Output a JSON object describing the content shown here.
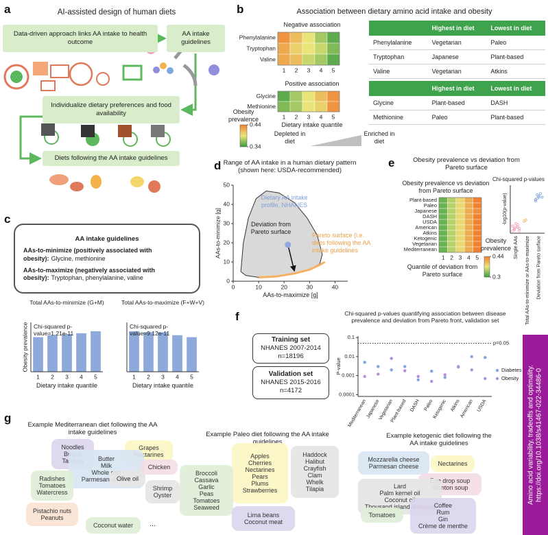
{
  "side_banner": "Amino acid variability, tradeoffs and optimality. https://doi.org/10.1038/s41467-022-34486-0",
  "panels": {
    "a": {
      "label": "a",
      "title": "AI-assisted design of human diets",
      "boxes": [
        "Data-driven approach links AA intake to health outcome",
        "AA intake guidelines",
        "Individualize dietary preferences and food availability",
        "Diets following the AA intake guidelines"
      ]
    },
    "b": {
      "label": "b",
      "title": "Association between dietary amino acid intake and obesity",
      "depleted": "Depleted in diet",
      "enriched": "Enriched in diet",
      "tables": [
        {
          "header": [
            "Highest in diet",
            "Lowest in diet"
          ],
          "rows": [
            [
              "Phenylalanine",
              "Vegetarian",
              "Paleo"
            ],
            [
              "Tryptophan",
              "Japanese",
              "Plant-based"
            ],
            [
              "Valine",
              "Vegetarian",
              "Atkins"
            ]
          ]
        },
        {
          "header": [
            "Highest in diet",
            "Lowest in diet"
          ],
          "rows": [
            [
              "Glycine",
              "Plant-based",
              "DASH"
            ],
            [
              "Methionine",
              "Paleo",
              "Plant-based"
            ]
          ]
        }
      ]
    },
    "c": {
      "label": "c",
      "guidelines_title": "AA intake guidelines",
      "minimize_label": "AAs-to-minimize (positively associated with obesity):",
      "minimize_items": "Glycine, methionine",
      "maximize_label": "AAs-to-maximize (negatively associated with obesity):",
      "maximize_items": "Tryptophan, phenylalanine, valine"
    },
    "d": {
      "label": "d"
    },
    "e": {
      "label": "e",
      "title": "Obesity prevalence vs deviation from Pareto surface"
    },
    "f": {
      "label": "f",
      "training": {
        "title": "Training set",
        "source": "NHANES 2007-2014",
        "n": "n=18196"
      },
      "validation": {
        "title": "Validation set",
        "source": "NHANES 2015-2016",
        "n": "n=4172"
      }
    },
    "g": {
      "label": "g",
      "diets": [
        {
          "title": "Example Mediterranean diet following the AA intake guidelines",
          "groups": [
            [
              "Noodles",
              "Bulgur",
              "Tapioca"
            ],
            [
              "Grapes",
              "Nectarines"
            ],
            [
              "Butter",
              "Milk",
              "Whole egg",
              "Parmesan cheese"
            ],
            [
              "Radishes",
              "Tomatoes",
              "Watercress"
            ],
            [
              "Chicken"
            ],
            [
              "Olive oil"
            ],
            [
              "Shrimp",
              "Oyster"
            ],
            [
              "Pistachio nuts",
              "Peanuts"
            ],
            [
              "Coconut water"
            ]
          ],
          "more": "..."
        },
        {
          "title": "Example Paleo diet following the AA intake guidelines",
          "groups": [
            [
              "Apples",
              "Cherries",
              "Nectarines",
              "Pears",
              "Plums",
              "Strawberries"
            ],
            [
              "Broccoli",
              "Cassava",
              "Garlic",
              "Peas",
              "Tomatoes",
              "Seaweed"
            ],
            [
              "Haddock",
              "Halibut",
              "Crayfish",
              "Clam",
              "Whelk",
              "Tilapia"
            ],
            [
              "Lima beans",
              "Coconut meat"
            ]
          ]
        },
        {
          "title": "Example ketogenic diet following the AA intake guidelines",
          "groups": [
            [
              "Mozzarella cheese",
              "Parmesan cheese"
            ],
            [
              "Nectarines"
            ],
            [
              "Egg drop soup",
              "Wonton soup"
            ],
            [
              "Lard",
              "Palm kernel oil",
              "Coconut oil",
              "Thousand island dressing"
            ],
            [
              "Tomatoes"
            ],
            [
              "Coffee",
              "Rum",
              "Gin",
              "Crème de menthe"
            ]
          ]
        }
      ]
    }
  },
  "chart_data": [
    {
      "type": "heatmap",
      "title": "Negative association",
      "rows": [
        "Phenylalanine",
        "Tryptophan",
        "Valine"
      ],
      "columns": [
        1,
        2,
        3,
        4,
        5
      ],
      "values": [
        [
          0.43,
          0.41,
          0.39,
          0.37,
          0.35
        ],
        [
          0.42,
          0.4,
          0.39,
          0.38,
          0.36
        ],
        [
          0.42,
          0.41,
          0.38,
          0.37,
          0.35
        ]
      ]
    },
    {
      "type": "heatmap",
      "title": "Positive association",
      "rows": [
        "Glycine",
        "Methionine"
      ],
      "columns": [
        1,
        2,
        3,
        4,
        5
      ],
      "values": [
        [
          0.35,
          0.37,
          0.39,
          0.41,
          0.43
        ],
        [
          0.36,
          0.37,
          0.39,
          0.4,
          0.43
        ]
      ],
      "xlabel": "Dietary intake quantile",
      "colorbar": {
        "label": "Obesity prevalence",
        "lim": [
          0.34,
          0.44
        ],
        "ticks": [
          0.44,
          0.34
        ]
      }
    },
    {
      "type": "bar",
      "title": "Total AAs-to-minimize (G+M)",
      "annotation": "Chi-squared p-value=1.21e-11",
      "categories": [
        1,
        2,
        3,
        4,
        5
      ],
      "values": [
        0.35,
        0.37,
        0.38,
        0.39,
        0.41
      ],
      "color": "#8eaadb",
      "ylim": [
        0,
        0.5
      ],
      "ylabel": "Obesity prevalence",
      "xlabel": "Dietary intake quantile"
    },
    {
      "type": "bar",
      "title": "Total AAs-to-maximize (F+W+V)",
      "annotation": "Chi-squared p-value=9.12e-11",
      "categories": [
        1,
        2,
        3,
        4,
        5
      ],
      "values": [
        0.41,
        0.4,
        0.4,
        0.37,
        0.35
      ],
      "color": "#8eaadb",
      "ylim": [
        0,
        0.5
      ],
      "xlabel": "Dietary intake quantile"
    },
    {
      "type": "area",
      "title": "Range of AA intake in a human dietary pattern (shown here: USDA-recommended)",
      "xlabel": "AAs-to-maximize [g]",
      "ylabel": "AAs-to-minimize [g]",
      "xlim": [
        0,
        45
      ],
      "ylim": [
        0,
        50
      ],
      "xticks": [
        0,
        10,
        20,
        30,
        40
      ],
      "yticks": [
        0,
        10,
        20,
        30,
        40,
        50
      ],
      "region": {
        "x": [
          3,
          4,
          6,
          9,
          13,
          18,
          24,
          29,
          33,
          35,
          34,
          30,
          24,
          17,
          10,
          5,
          3
        ],
        "y": [
          5,
          20,
          33,
          43,
          47,
          46,
          41,
          33,
          24,
          14,
          9,
          6,
          4,
          2.5,
          2,
          3,
          5
        ],
        "color": "#d9d9d9"
      },
      "pareto": {
        "x": [
          10,
          17,
          24,
          30,
          34,
          36
        ],
        "y": [
          2,
          2.5,
          4,
          6,
          8.5,
          10
        ],
        "color": "#f4b162"
      },
      "point": {
        "x": 21.5,
        "y": 19,
        "color": "#8eaadb"
      },
      "annotations": [
        {
          "text": "Dietary AA intake profile, NHANES",
          "color": "#7fa0d8"
        },
        {
          "text": "Deviation from Pareto surface",
          "color": "#222222"
        },
        {
          "text": "Pareto surface (i.e. diets following the AA intake guidelines",
          "color": "#f0a04b"
        }
      ]
    },
    {
      "type": "heatmap",
      "title": "Obesity prevalence vs deviation from Pareto surface",
      "rows": [
        "Plant-based",
        "Paleo",
        "Japanese",
        "DASH",
        "USDA",
        "American",
        "Atkins",
        "Ketogenic",
        "Vegetarian",
        "Mediterranean"
      ],
      "columns": [
        1,
        2,
        3,
        4,
        5
      ],
      "values": [
        [
          0.32,
          0.35,
          0.38,
          0.41,
          0.44
        ],
        [
          0.32,
          0.35,
          0.38,
          0.41,
          0.44
        ],
        [
          0.32,
          0.35,
          0.38,
          0.41,
          0.43
        ],
        [
          0.32,
          0.35,
          0.38,
          0.41,
          0.44
        ],
        [
          0.32,
          0.35,
          0.38,
          0.41,
          0.44
        ],
        [
          0.32,
          0.35,
          0.38,
          0.41,
          0.44
        ],
        [
          0.32,
          0.35,
          0.38,
          0.41,
          0.44
        ],
        [
          0.32,
          0.35,
          0.38,
          0.41,
          0.44
        ],
        [
          0.32,
          0.35,
          0.38,
          0.41,
          0.44
        ],
        [
          0.32,
          0.35,
          0.38,
          0.41,
          0.44
        ]
      ],
      "xlabel": "Quantile of deviation from Pareto surface",
      "colorbar": {
        "label": "Obesity prevalence",
        "lim": [
          0.3,
          0.44
        ],
        "ticks": [
          0.44,
          0.3
        ]
      }
    },
    {
      "type": "strip",
      "title": "Chi-squared p-values",
      "ylabel": "-log10(p-value)",
      "categories": [
        "Single AAs",
        "Total AAs-to-minimize or AAs-to-maximize",
        "Deviation from Pareto surface"
      ],
      "ylim": [
        0,
        40
      ],
      "series": [
        {
          "color": "#f4a6b8",
          "values": [
            2,
            3,
            5,
            7,
            4,
            6,
            3,
            8,
            5,
            2,
            6,
            4
          ]
        },
        {
          "color": "#f4b162",
          "values": [
            10,
            11
          ]
        },
        {
          "color": "#8eaadb",
          "values": [
            27,
            29,
            31,
            33,
            30,
            28,
            32,
            30
          ]
        }
      ]
    },
    {
      "type": "scatter",
      "title": "Chi-squared p-values quantifying association between disease prevalence and deviation from Pareto front, validation set",
      "ylabel": "P-value",
      "log_y": true,
      "ylim": [
        8e-05,
        0.12
      ],
      "yticks": [
        0.0001,
        0.001,
        0.01,
        0.1
      ],
      "threshold": {
        "value": 0.05,
        "label": "p=0.05"
      },
      "categories": [
        "Mediterranean",
        "Japanese",
        "Vegetarian",
        "Plant-based",
        "DASH",
        "Paleo",
        "Ketogenic",
        "Atkins",
        "American",
        "USDA"
      ],
      "series": [
        {
          "name": "Diabetes",
          "color": "#7fa7e0",
          "values": [
            0.005,
            0.003,
            0.002,
            0.003,
            0.0006,
            0.0017,
            0.0008,
            0.003,
            0.01,
            0.009
          ]
        },
        {
          "name": "Obesity",
          "color": "#b48fd8",
          "values": [
            0.0009,
            0.0012,
            0.008,
            0.0018,
            0.0009,
            0.0005,
            0.0011,
            0.0028,
            0.002,
            0.0007
          ]
        }
      ]
    }
  ]
}
